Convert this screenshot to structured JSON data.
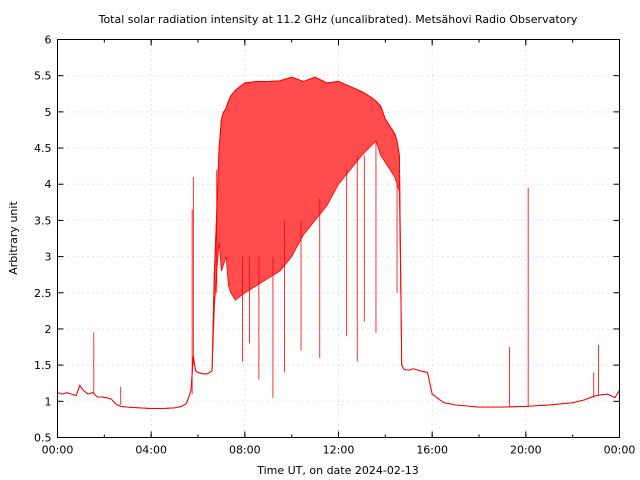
{
  "chart_data": {
    "type": "line",
    "title": "Total solar radiation intensity at 11.2 GHz (uncalibrated). Metsähovi Radio Observatory",
    "xlabel": "Time UT, on date 2024-02-13",
    "ylabel": "Arbitrary unit",
    "xlim": [
      0,
      24
    ],
    "ylim": [
      0.5,
      6
    ],
    "grid": true,
    "x_ticks": [
      {
        "value": 0,
        "label": "00:00"
      },
      {
        "value": 4,
        "label": "04:00"
      },
      {
        "value": 8,
        "label": "08:00"
      },
      {
        "value": 12,
        "label": "12:00"
      },
      {
        "value": 16,
        "label": "16:00"
      },
      {
        "value": 20,
        "label": "20:00"
      },
      {
        "value": 24,
        "label": "00:00"
      }
    ],
    "y_ticks": [
      {
        "value": 0.5,
        "label": "0.5"
      },
      {
        "value": 1,
        "label": "1"
      },
      {
        "value": 1.5,
        "label": "1.5"
      },
      {
        "value": 2,
        "label": "2"
      },
      {
        "value": 2.5,
        "label": "2.5"
      },
      {
        "value": 3,
        "label": "3"
      },
      {
        "value": 3.5,
        "label": "3.5"
      },
      {
        "value": 4,
        "label": "4"
      },
      {
        "value": 4.5,
        "label": "4.5"
      },
      {
        "value": 5,
        "label": "5"
      },
      {
        "value": 5.5,
        "label": "5.5"
      },
      {
        "value": 6,
        "label": "6"
      }
    ],
    "series": [
      {
        "color": "#ff0000",
        "fill_color": "#ff4d4d",
        "x": [
          0.0,
          0.2,
          0.4,
          0.6,
          0.8,
          0.95,
          1.1,
          1.3,
          1.5,
          1.7,
          1.9,
          2.1,
          2.3,
          2.5,
          2.7,
          3.0,
          3.5,
          4.0,
          4.5,
          5.0,
          5.3,
          5.5,
          5.6,
          5.7,
          5.8,
          5.9,
          6.0,
          6.2,
          6.4,
          6.6,
          6.7,
          6.8,
          6.9,
          7.0,
          7.1,
          7.2,
          7.3,
          7.4,
          7.6,
          8.0,
          8.5,
          9.0,
          9.5,
          10.0,
          10.5,
          11.0,
          11.5,
          12.0,
          12.5,
          13.0,
          13.3,
          13.6,
          13.8,
          14.0,
          14.2,
          14.4,
          14.5,
          14.6,
          14.7,
          14.8,
          15.0,
          15.2,
          15.5,
          15.8,
          16.0,
          16.5,
          17.0,
          18.0,
          19.0,
          20.0,
          21.0,
          22.0,
          22.5,
          23.0,
          23.5,
          23.8,
          24.0
        ],
        "upper": [
          1.12,
          1.1,
          1.12,
          1.1,
          1.08,
          1.22,
          1.15,
          1.1,
          1.12,
          1.06,
          1.06,
          1.05,
          1.03,
          0.96,
          0.93,
          0.92,
          0.91,
          0.9,
          0.9,
          0.91,
          0.93,
          0.97,
          1.05,
          1.15,
          1.62,
          1.42,
          1.4,
          1.38,
          1.38,
          1.42,
          2.8,
          3.6,
          4.5,
          4.9,
          5.0,
          5.05,
          5.15,
          5.22,
          5.3,
          5.4,
          5.42,
          5.42,
          5.43,
          5.48,
          5.42,
          5.48,
          5.4,
          5.42,
          5.35,
          5.28,
          5.22,
          5.15,
          5.08,
          4.9,
          4.8,
          4.7,
          4.6,
          4.4,
          1.5,
          1.44,
          1.43,
          1.45,
          1.42,
          1.4,
          1.1,
          0.98,
          0.95,
          0.92,
          0.92,
          0.93,
          0.95,
          0.98,
          1.02,
          1.08,
          1.1,
          1.05,
          1.15
        ],
        "lower": [
          1.12,
          1.1,
          1.12,
          1.1,
          1.08,
          1.22,
          1.15,
          1.1,
          1.12,
          1.06,
          1.06,
          1.05,
          1.03,
          0.96,
          0.93,
          0.92,
          0.91,
          0.9,
          0.9,
          0.91,
          0.93,
          0.97,
          1.05,
          1.15,
          1.62,
          1.42,
          1.4,
          1.38,
          1.38,
          1.42,
          2.3,
          2.8,
          3.2,
          2.8,
          2.9,
          3.0,
          2.6,
          2.5,
          2.4,
          2.5,
          2.6,
          2.7,
          2.8,
          3.0,
          3.3,
          3.5,
          3.7,
          4.0,
          4.2,
          4.4,
          4.5,
          4.6,
          4.4,
          4.3,
          4.2,
          4.1,
          4.0,
          3.9,
          1.5,
          1.44,
          1.43,
          1.45,
          1.42,
          1.4,
          1.1,
          0.98,
          0.95,
          0.92,
          0.92,
          0.93,
          0.95,
          0.98,
          1.02,
          1.08,
          1.1,
          1.05,
          1.15
        ]
      }
    ],
    "spikes": [
      {
        "x": 1.55,
        "base": 1.1,
        "peak": 1.95
      },
      {
        "x": 2.7,
        "base": 0.95,
        "peak": 1.2
      },
      {
        "x": 5.75,
        "base": 1.1,
        "peak": 3.65
      },
      {
        "x": 5.8,
        "base": 1.5,
        "peak": 4.1
      },
      {
        "x": 6.8,
        "base": 2.5,
        "peak": 4.2
      },
      {
        "x": 7.9,
        "base": 3.0,
        "peak": 1.55
      },
      {
        "x": 8.2,
        "base": 3.0,
        "peak": 1.8
      },
      {
        "x": 8.6,
        "base": 3.0,
        "peak": 1.3
      },
      {
        "x": 9.2,
        "base": 3.0,
        "peak": 1.05
      },
      {
        "x": 9.7,
        "base": 3.5,
        "peak": 1.4
      },
      {
        "x": 10.4,
        "base": 3.5,
        "peak": 1.7
      },
      {
        "x": 11.2,
        "base": 3.8,
        "peak": 1.6
      },
      {
        "x": 12.35,
        "base": 4.2,
        "peak": 1.9
      },
      {
        "x": 12.8,
        "base": 4.4,
        "peak": 1.55
      },
      {
        "x": 13.1,
        "base": 4.4,
        "peak": 2.1
      },
      {
        "x": 13.6,
        "base": 4.6,
        "peak": 1.95
      },
      {
        "x": 14.5,
        "base": 4.0,
        "peak": 2.5
      },
      {
        "x": 19.3,
        "base": 0.93,
        "peak": 1.75
      },
      {
        "x": 20.1,
        "base": 0.93,
        "peak": 3.95
      },
      {
        "x": 23.1,
        "base": 1.08,
        "peak": 1.78
      },
      {
        "x": 22.9,
        "base": 1.05,
        "peak": 1.4
      }
    ]
  }
}
